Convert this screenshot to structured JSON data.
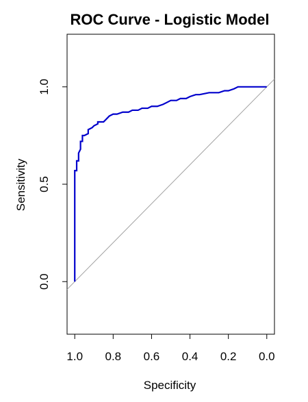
{
  "chart_data": {
    "type": "line",
    "title": "ROC Curve - Logistic Model",
    "xlabel": "Specificity",
    "ylabel": "Sensitivity",
    "x_reversed": true,
    "xlim": [
      1.04,
      -0.04
    ],
    "ylim": [
      -0.27,
      1.27
    ],
    "x_ticks": [
      1.0,
      0.8,
      0.6,
      0.4,
      0.2,
      0.0
    ],
    "x_tick_labels": [
      "1.0",
      "0.8",
      "0.6",
      "0.4",
      "0.2",
      "0.0"
    ],
    "y_ticks": [
      0.0,
      0.5,
      1.0
    ],
    "y_tick_labels": [
      "0.0",
      "0.5",
      "1.0"
    ],
    "grid": false,
    "reference_line": {
      "from": [
        1,
        0
      ],
      "to": [
        0,
        1
      ],
      "color": "#a0a0a0"
    },
    "series": [
      {
        "color": "#0000cc",
        "x": [
          1.0,
          1.0,
          0.99,
          0.99,
          0.98,
          0.98,
          0.97,
          0.97,
          0.96,
          0.96,
          0.95,
          0.93,
          0.93,
          0.91,
          0.9,
          0.88,
          0.88,
          0.85,
          0.83,
          0.82,
          0.8,
          0.78,
          0.75,
          0.72,
          0.7,
          0.67,
          0.65,
          0.62,
          0.6,
          0.57,
          0.54,
          0.52,
          0.5,
          0.47,
          0.45,
          0.42,
          0.4,
          0.37,
          0.35,
          0.3,
          0.25,
          0.22,
          0.2,
          0.17,
          0.15,
          0.1,
          0.05,
          0.0
        ],
        "y": [
          0.0,
          0.57,
          0.57,
          0.62,
          0.62,
          0.66,
          0.68,
          0.72,
          0.72,
          0.75,
          0.75,
          0.76,
          0.78,
          0.79,
          0.8,
          0.81,
          0.82,
          0.82,
          0.84,
          0.85,
          0.86,
          0.86,
          0.87,
          0.87,
          0.88,
          0.88,
          0.89,
          0.89,
          0.9,
          0.9,
          0.91,
          0.92,
          0.93,
          0.93,
          0.94,
          0.94,
          0.95,
          0.96,
          0.96,
          0.97,
          0.97,
          0.98,
          0.98,
          0.99,
          1.0,
          1.0,
          1.0,
          1.0
        ]
      }
    ]
  }
}
